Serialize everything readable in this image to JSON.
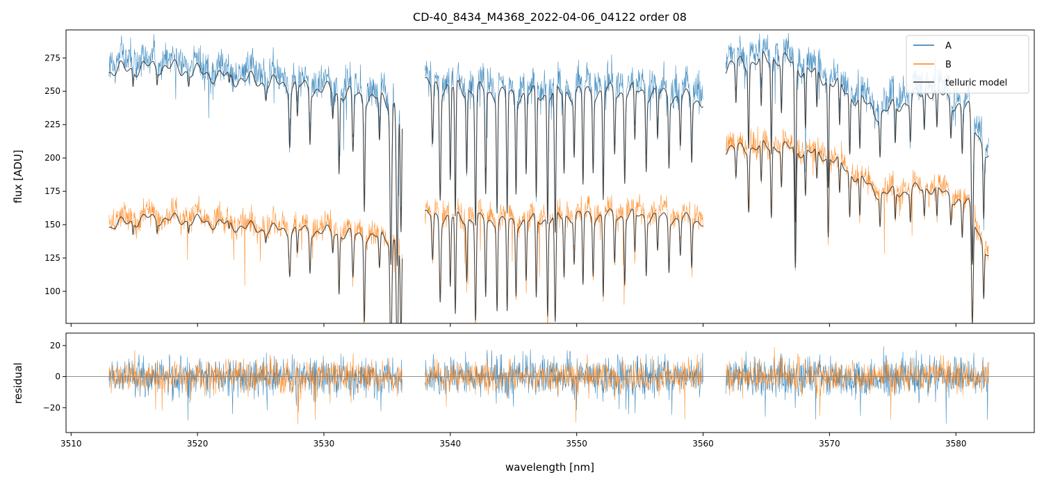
{
  "chart_data": {
    "type": "line",
    "title": "CD-40_8434_M4368_2022-04-06_04122  order 08",
    "xlabel": "wavelength [nm]",
    "xlim": [
      3509.6,
      3586.2
    ],
    "xticks": [
      3510,
      3520,
      3530,
      3540,
      3550,
      3560,
      3570,
      3580
    ],
    "segments": [
      [
        3513.0,
        3536.2
      ],
      [
        3538.0,
        3560.0
      ],
      [
        3561.8,
        3582.6
      ]
    ],
    "colors": {
      "A": "#1f77b4",
      "B": "#ff7f0e",
      "telluric": "#333333",
      "zero": "#7f7f7f"
    },
    "top_panel": {
      "ylabel": "flux [ADU]",
      "ylim": [
        76,
        296
      ],
      "yticks": [
        100,
        125,
        150,
        175,
        200,
        225,
        250,
        275
      ],
      "continuum": {
        "A": [
          [
            3513.0,
            272
          ],
          [
            3517,
            276
          ],
          [
            3522,
            268
          ],
          [
            3530,
            258
          ],
          [
            3536.2,
            248
          ],
          [
            3538.0,
            262
          ],
          [
            3545,
            254
          ],
          [
            3550,
            256
          ],
          [
            3555,
            257
          ],
          [
            3560,
            250
          ],
          [
            3561.8,
            276
          ],
          [
            3566,
            282
          ],
          [
            3570,
            265
          ],
          [
            3574,
            240
          ],
          [
            3578,
            258
          ],
          [
            3581,
            243
          ],
          [
            3582.6,
            206
          ]
        ],
        "B": [
          [
            3513.0,
            154
          ],
          [
            3516,
            160
          ],
          [
            3520,
            158
          ],
          [
            3525,
            152
          ],
          [
            3530,
            150
          ],
          [
            3536.2,
            144
          ],
          [
            3538.0,
            162
          ],
          [
            3545,
            157
          ],
          [
            3550,
            162
          ],
          [
            3555,
            162
          ],
          [
            3560,
            158
          ],
          [
            3561.8,
            212
          ],
          [
            3566,
            214
          ],
          [
            3570,
            206
          ],
          [
            3574,
            178
          ],
          [
            3578,
            183
          ],
          [
            3581,
            170
          ],
          [
            3582.6,
            130
          ]
        ]
      },
      "absorption_lines": [
        [
          3514.9,
          12,
          0.04
        ],
        [
          3516.8,
          10,
          0.04
        ],
        [
          3519.3,
          9,
          0.04
        ],
        [
          3522.5,
          8,
          0.05
        ],
        [
          3525.4,
          9,
          0.05
        ],
        [
          3527.3,
          40,
          0.06
        ],
        [
          3527.9,
          25,
          0.05
        ],
        [
          3528.9,
          38,
          0.05
        ],
        [
          3530.7,
          18,
          0.05
        ],
        [
          3531.2,
          60,
          0.05
        ],
        [
          3532.3,
          45,
          0.06
        ],
        [
          3533.2,
          80,
          0.05
        ],
        [
          3534.4,
          35,
          0.06
        ],
        [
          3535.3,
          120,
          0.07
        ],
        [
          3535.8,
          120,
          0.07
        ],
        [
          3536.1,
          100,
          0.06
        ],
        [
          3538.6,
          45,
          0.06
        ],
        [
          3539.2,
          80,
          0.06
        ],
        [
          3540.0,
          70,
          0.05
        ],
        [
          3540.4,
          100,
          0.05
        ],
        [
          3541.3,
          60,
          0.05
        ],
        [
          3542.0,
          100,
          0.06
        ],
        [
          3542.8,
          75,
          0.05
        ],
        [
          3543.7,
          85,
          0.05
        ],
        [
          3544.5,
          90,
          0.05
        ],
        [
          3545.2,
          70,
          0.05
        ],
        [
          3546.0,
          60,
          0.05
        ],
        [
          3546.8,
          80,
          0.05
        ],
        [
          3547.7,
          95,
          0.05
        ],
        [
          3548.3,
          110,
          0.06
        ],
        [
          3549.0,
          60,
          0.05
        ],
        [
          3549.8,
          45,
          0.05
        ],
        [
          3550.5,
          70,
          0.05
        ],
        [
          3551.3,
          55,
          0.05
        ],
        [
          3552.1,
          80,
          0.05
        ],
        [
          3553.0,
          45,
          0.05
        ],
        [
          3553.8,
          65,
          0.05
        ],
        [
          3554.6,
          40,
          0.05
        ],
        [
          3555.5,
          55,
          0.05
        ],
        [
          3556.4,
          35,
          0.05
        ],
        [
          3557.3,
          50,
          0.05
        ],
        [
          3558.2,
          35,
          0.05
        ],
        [
          3559.1,
          45,
          0.05
        ],
        [
          3562.6,
          30,
          0.05
        ],
        [
          3563.6,
          60,
          0.05
        ],
        [
          3564.6,
          40,
          0.05
        ],
        [
          3565.4,
          70,
          0.05
        ],
        [
          3566.2,
          40,
          0.05
        ],
        [
          3567.3,
          120,
          0.06
        ],
        [
          3568.1,
          45,
          0.05
        ],
        [
          3569.0,
          30,
          0.05
        ],
        [
          3569.9,
          80,
          0.05
        ],
        [
          3570.8,
          35,
          0.05
        ],
        [
          3571.6,
          45,
          0.05
        ],
        [
          3572.4,
          40,
          0.05
        ],
        [
          3574.0,
          30,
          0.05
        ],
        [
          3575.2,
          30,
          0.05
        ],
        [
          3576.4,
          30,
          0.05
        ],
        [
          3577.5,
          28,
          0.05
        ],
        [
          3578.5,
          30,
          0.05
        ],
        [
          3579.6,
          25,
          0.05
        ],
        [
          3580.5,
          35,
          0.05
        ],
        [
          3581.3,
          110,
          0.07
        ],
        [
          3582.2,
          50,
          0.05
        ]
      ]
    },
    "bottom_panel": {
      "ylabel": "residual",
      "ylim": [
        -36,
        28
      ],
      "yticks": [
        -20,
        0,
        20
      ],
      "zero_line": 0
    },
    "legend": {
      "location": "top-right",
      "entries": [
        {
          "key": "A",
          "label": "A"
        },
        {
          "key": "B",
          "label": "B"
        },
        {
          "key": "telluric",
          "label": "telluric model"
        }
      ]
    }
  }
}
